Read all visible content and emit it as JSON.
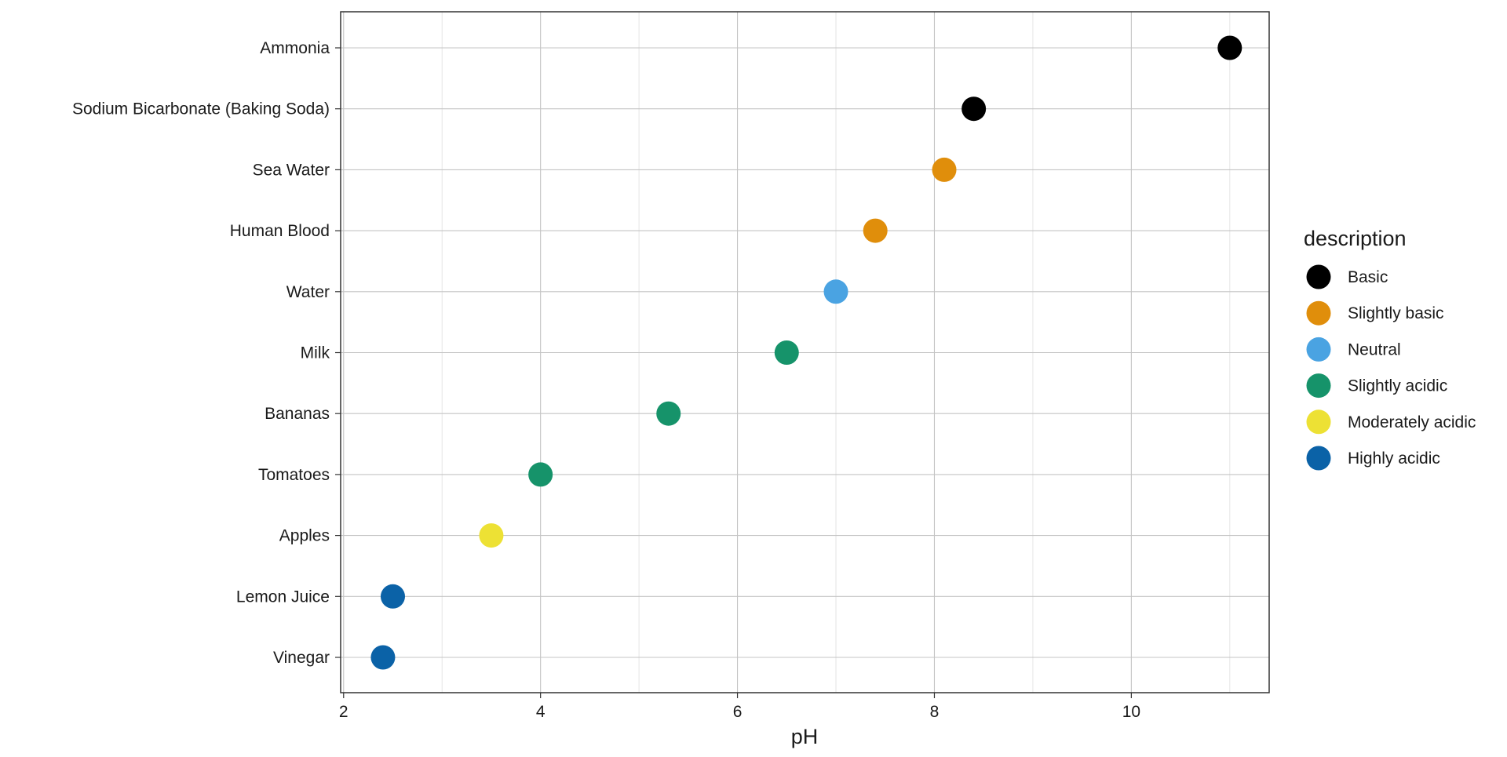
{
  "chart_data": {
    "type": "scatter",
    "xlabel": "pH",
    "ylabel": "",
    "title": "",
    "xlim": [
      1.97,
      11.4
    ],
    "xticks": [
      2,
      4,
      6,
      8,
      10
    ],
    "grid": true,
    "categories": [
      "Vinegar",
      "Lemon Juice",
      "Apples",
      "Tomatoes",
      "Bananas",
      "Milk",
      "Water",
      "Human Blood",
      "Sea Water",
      "Sodium Bicarbonate (Baking Soda)",
      "Ammonia"
    ],
    "points": [
      {
        "label": "Vinegar",
        "x": 2.4,
        "description": "Highly acidic"
      },
      {
        "label": "Lemon Juice",
        "x": 2.5,
        "description": "Highly acidic"
      },
      {
        "label": "Apples",
        "x": 3.5,
        "description": "Moderately acidic"
      },
      {
        "label": "Tomatoes",
        "x": 4.0,
        "description": "Slightly acidic"
      },
      {
        "label": "Bananas",
        "x": 5.3,
        "description": "Slightly acidic"
      },
      {
        "label": "Milk",
        "x": 6.5,
        "description": "Slightly acidic"
      },
      {
        "label": "Water",
        "x": 7.0,
        "description": "Neutral"
      },
      {
        "label": "Human Blood",
        "x": 7.4,
        "description": "Slightly basic"
      },
      {
        "label": "Sea Water",
        "x": 8.1,
        "description": "Slightly basic"
      },
      {
        "label": "Sodium Bicarbonate (Baking Soda)",
        "x": 8.4,
        "description": "Basic"
      },
      {
        "label": "Ammonia",
        "x": 11.0,
        "description": "Basic"
      }
    ],
    "legend": {
      "title": "description",
      "position": "right",
      "entries": [
        {
          "name": "Basic",
          "color": "#000000"
        },
        {
          "name": "Slightly basic",
          "color": "#E08E0B"
        },
        {
          "name": "Neutral",
          "color": "#4AA3E2"
        },
        {
          "name": "Slightly acidic",
          "color": "#16936A"
        },
        {
          "name": "Moderately acidic",
          "color": "#EDE134"
        },
        {
          "name": "Highly acidic",
          "color": "#0B62A7"
        }
      ]
    }
  }
}
